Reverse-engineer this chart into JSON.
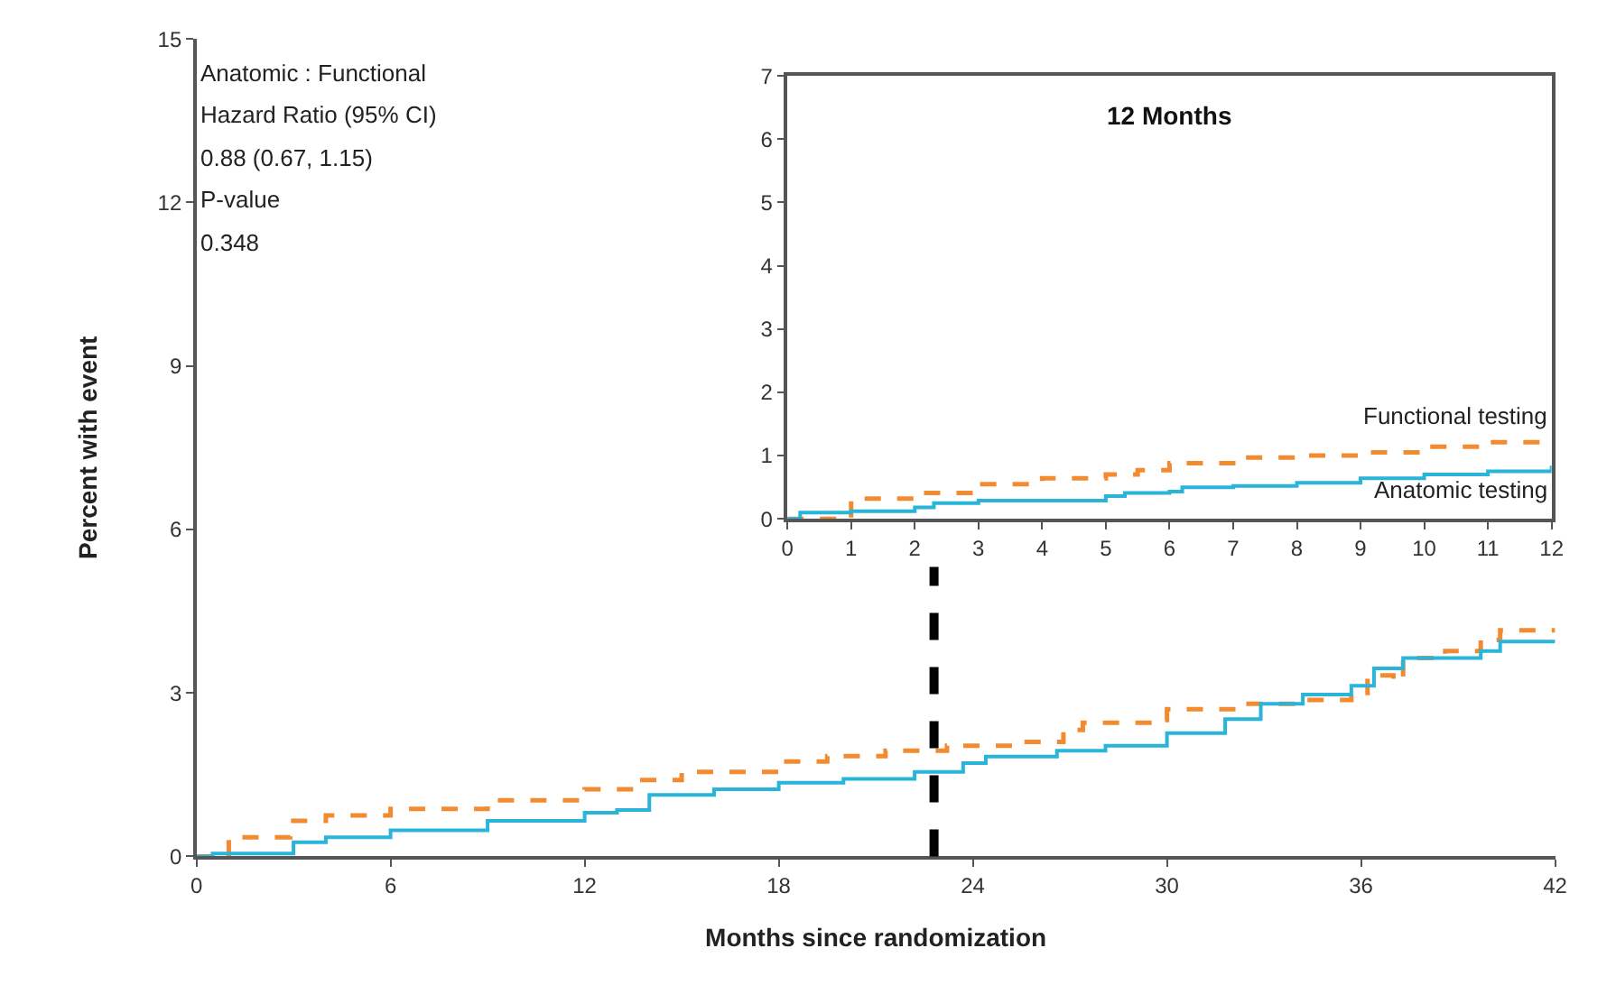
{
  "chart_data": [
    {
      "type": "step",
      "xlabel": "Months since randomization",
      "ylabel": "Percent with event",
      "annotations": [
        "Anatomic : Functional",
        "Hazard Ratio (95% CI)",
        "0.88 (0.67, 1.15)",
        "P-value",
        "0.348"
      ],
      "series": [
        {
          "color": "#f28a30",
          "line_style": "dashed",
          "x": [
            0,
            1,
            2.9,
            4,
            6,
            9,
            12,
            13.7,
            15,
            18,
            19.5,
            21.3,
            23.2,
            25.4,
            26.8,
            27.4,
            29.6,
            30,
            32.3,
            34.2,
            35.7,
            36.2,
            37,
            37.3,
            38.6,
            39.7,
            40.3,
            42
          ],
          "values": [
            0,
            0.35,
            0.65,
            0.75,
            0.87,
            1.03,
            1.23,
            1.4,
            1.55,
            1.74,
            1.84,
            1.94,
            2.03,
            2.1,
            2.32,
            2.45,
            2.5,
            2.7,
            2.8,
            2.87,
            3.0,
            3.32,
            3.22,
            3.64,
            3.77,
            3.97,
            4.15,
            4.15
          ]
        },
        {
          "color": "#29b5d9",
          "line_style": "solid",
          "x": [
            0,
            0.5,
            3,
            4,
            6,
            9,
            12,
            13,
            14,
            16,
            18,
            20,
            22.2,
            23.7,
            24.4,
            26.6,
            28.1,
            30,
            31.8,
            32.9,
            34.2,
            35.7,
            36.4,
            37.3,
            39.7,
            40.3,
            42
          ],
          "values": [
            0,
            0.05,
            0.26,
            0.35,
            0.48,
            0.65,
            0.8,
            0.85,
            1.13,
            1.23,
            1.35,
            1.42,
            1.55,
            1.71,
            1.83,
            1.94,
            2.03,
            2.26,
            2.52,
            2.8,
            2.97,
            3.13,
            3.45,
            3.64,
            3.77,
            3.94,
            3.94
          ]
        }
      ],
      "xlim": [
        0,
        42
      ],
      "xticks": [
        0,
        6,
        12,
        18,
        24,
        30,
        36,
        42
      ],
      "ylim": [
        0,
        15
      ],
      "yticks": [
        0,
        3,
        6,
        9,
        12,
        15
      ],
      "legend": false,
      "ref_lines": [
        {
          "axis": "x",
          "value": 22.8,
          "color": "#000000",
          "line_style": "dashed"
        }
      ]
    },
    {
      "type": "step",
      "title": "12 Months",
      "series": [
        {
          "name": "Functional testing",
          "color": "#f28a30",
          "line_style": "dashed",
          "x": [
            0,
            1,
            2,
            3,
            4,
            5,
            5.5,
            6,
            7,
            8,
            9,
            10,
            11,
            12
          ],
          "values": [
            0,
            0.32,
            0.41,
            0.55,
            0.64,
            0.7,
            0.77,
            0.88,
            0.97,
            1.0,
            1.05,
            1.14,
            1.21,
            1.23
          ]
        },
        {
          "name": "Anatomic testing",
          "color": "#29b5d9",
          "line_style": "solid",
          "x": [
            0,
            0.2,
            1,
            2,
            2.3,
            3,
            4,
            5,
            5.3,
            6,
            6.2,
            7,
            8,
            9,
            10,
            11,
            12
          ],
          "values": [
            0,
            0.1,
            0.12,
            0.18,
            0.25,
            0.29,
            0.29,
            0.36,
            0.41,
            0.43,
            0.5,
            0.52,
            0.57,
            0.64,
            0.7,
            0.75,
            0.84
          ]
        }
      ],
      "xlim": [
        0,
        12
      ],
      "xticks": [
        0,
        1,
        2,
        3,
        4,
        5,
        6,
        7,
        8,
        9,
        10,
        11,
        12
      ],
      "ylim": [
        0,
        7
      ],
      "yticks": [
        0,
        1,
        2,
        3,
        4,
        5,
        6,
        7
      ],
      "legend": false
    }
  ]
}
